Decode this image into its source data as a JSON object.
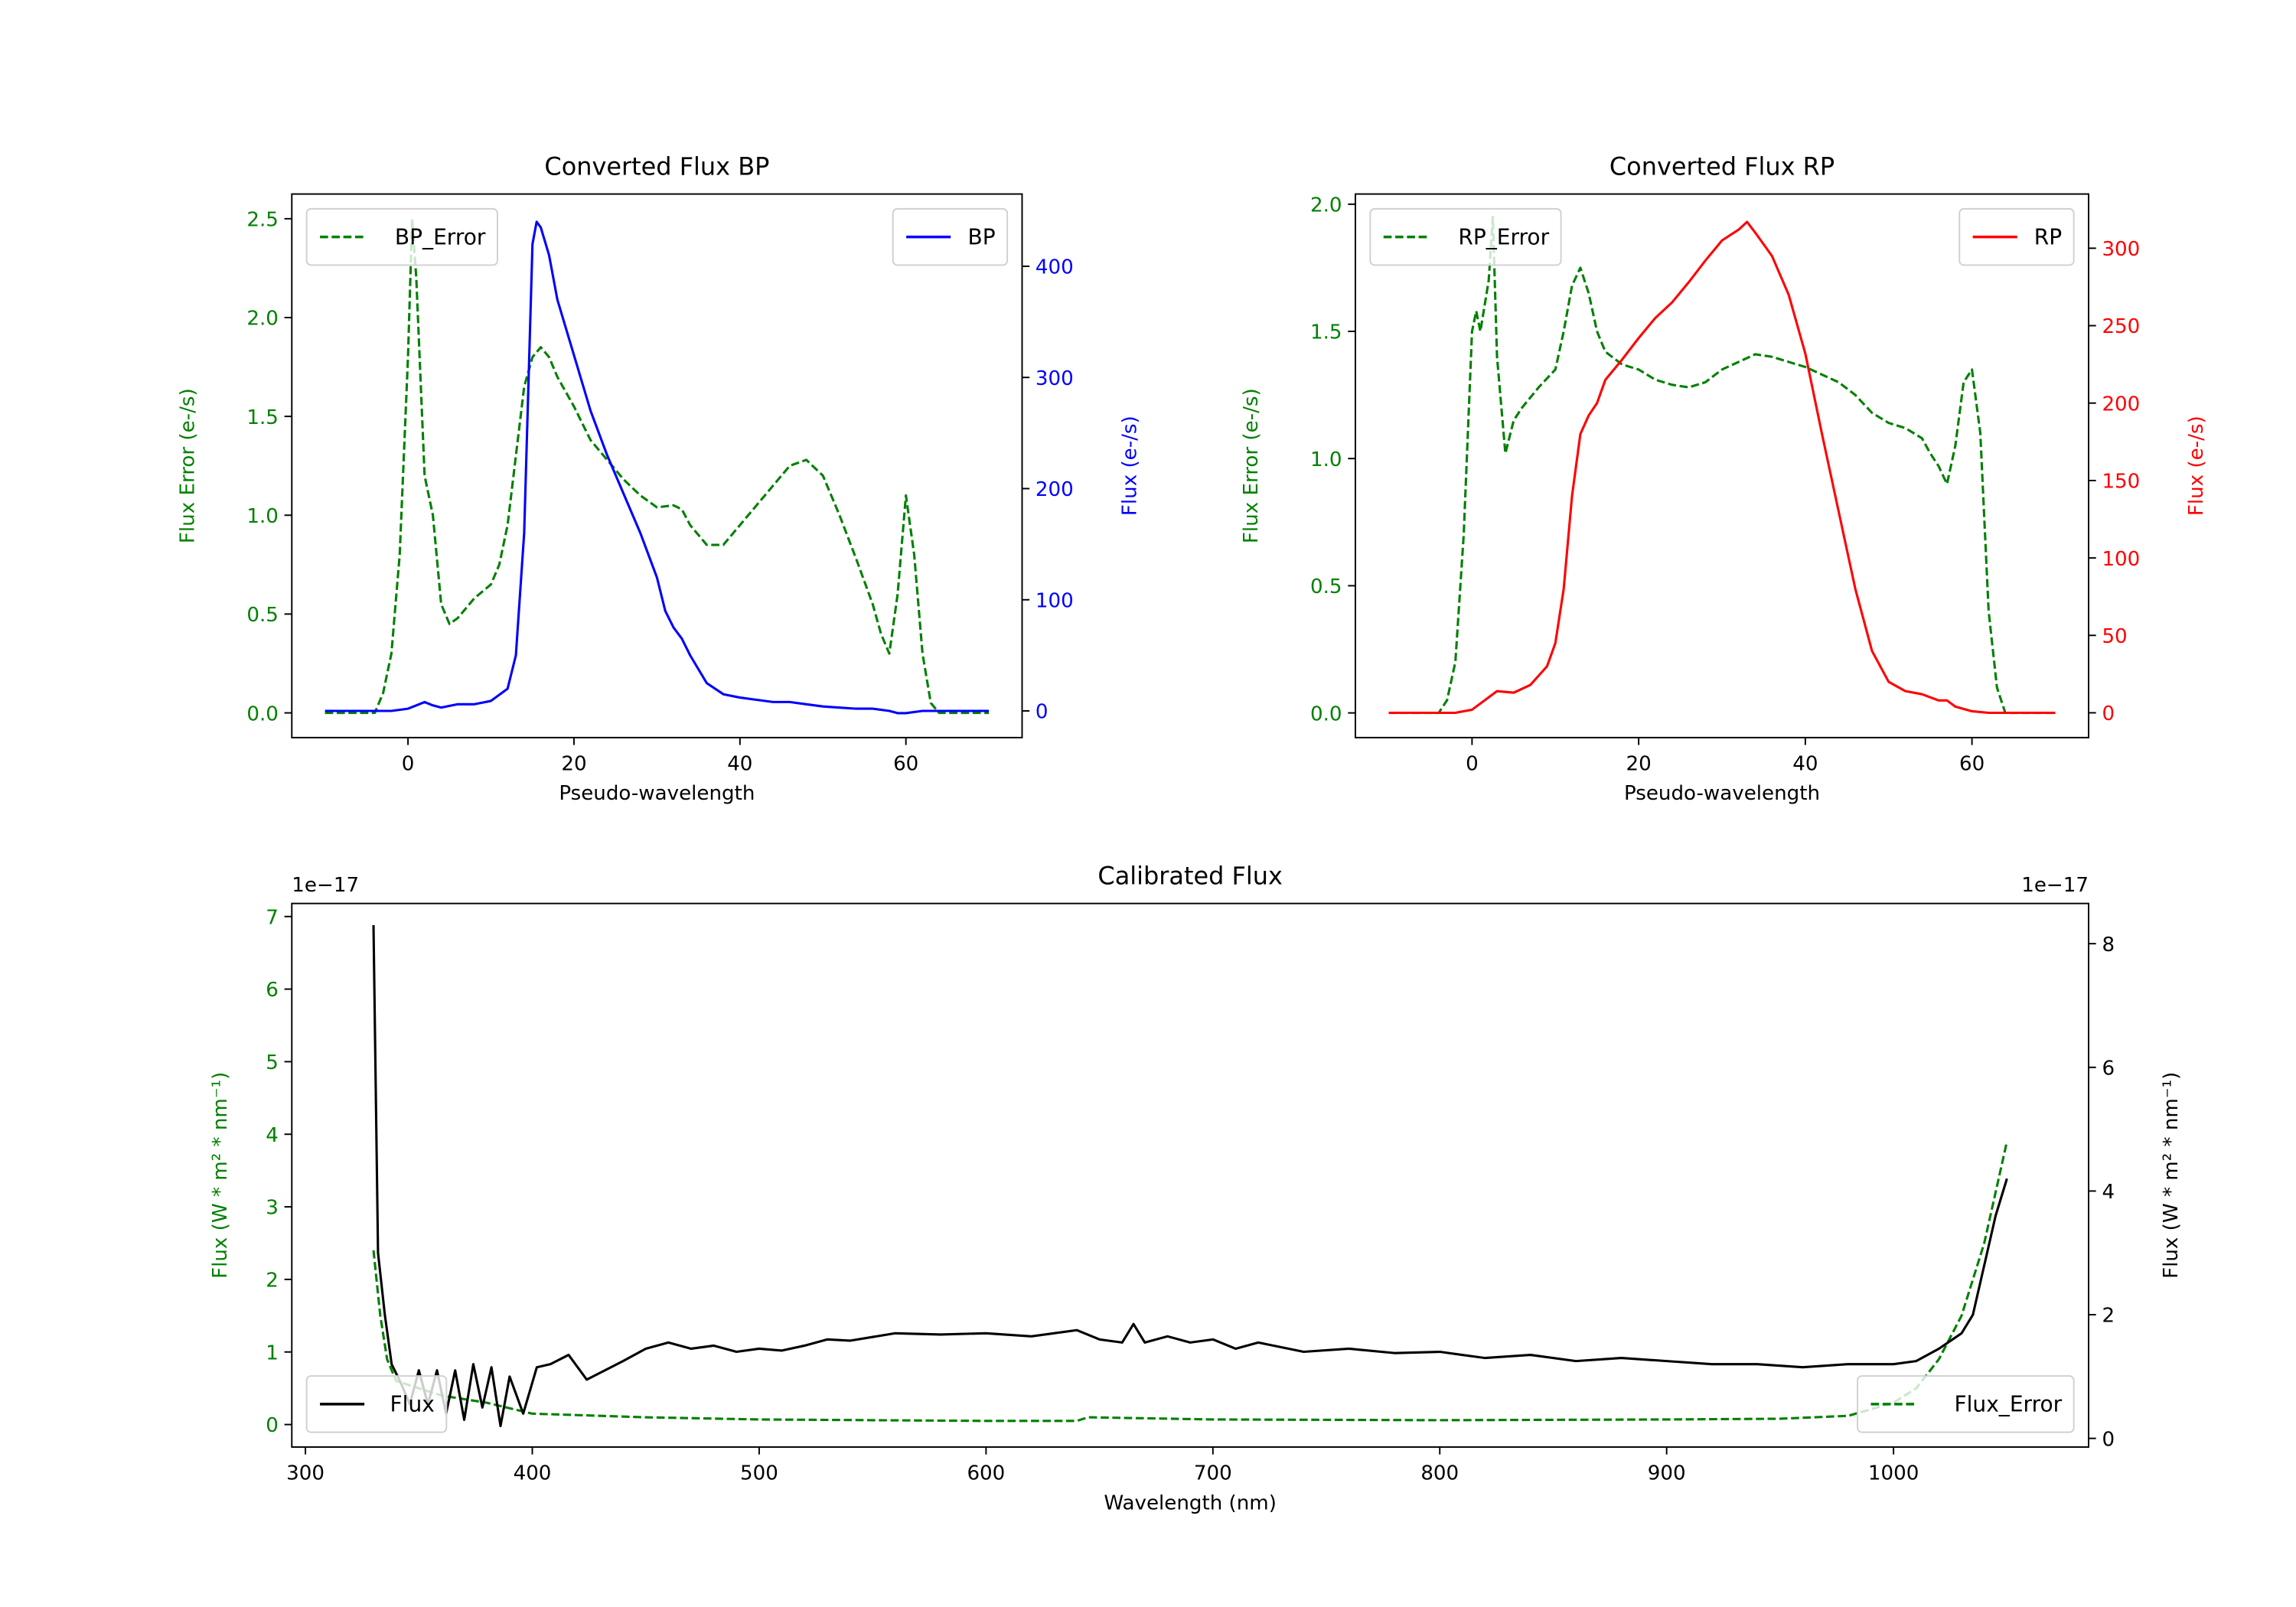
{
  "chart_data": [
    {
      "type": "line",
      "title": "Converted Flux BP",
      "xlabel": "Pseudo-wavelength",
      "ylabel": "Flux Error (e-/s)",
      "ylabel_right": "Flux (e-/s)",
      "xlim": [
        -14,
        74
      ],
      "ylim": [
        -0.125,
        2.625
      ],
      "ylim_right": [
        -24,
        465
      ],
      "xticks": [
        0,
        20,
        40,
        60
      ],
      "yticks": [
        0.0,
        0.5,
        1.0,
        1.5,
        2.0,
        2.5
      ],
      "yticks_right": [
        0,
        100,
        200,
        300,
        400
      ],
      "left_color": "#008000",
      "right_color": "#0000ff",
      "series": [
        {
          "name": "BP_Error",
          "axis": "left",
          "color": "#008000",
          "style": "dashed",
          "legend": "top-left",
          "x": [
            -10,
            -4,
            -3,
            -2,
            -1,
            0,
            0.5,
            1,
            2,
            3,
            4,
            5,
            6,
            8,
            10,
            11,
            12,
            13,
            14,
            15,
            16,
            17,
            18,
            20,
            22,
            24,
            26,
            28,
            30,
            32,
            33,
            34,
            36,
            38,
            40,
            42,
            44,
            46,
            48,
            50,
            52,
            54,
            56,
            57,
            58,
            59,
            60,
            61,
            62,
            63,
            64,
            70
          ],
          "y": [
            0,
            0,
            0.1,
            0.3,
            0.8,
            1.8,
            2.5,
            2.2,
            1.2,
            1.0,
            0.55,
            0.45,
            0.48,
            0.58,
            0.65,
            0.75,
            0.95,
            1.3,
            1.65,
            1.8,
            1.85,
            1.8,
            1.7,
            1.55,
            1.38,
            1.28,
            1.18,
            1.1,
            1.04,
            1.05,
            1.03,
            0.95,
            0.85,
            0.85,
            0.95,
            1.05,
            1.15,
            1.25,
            1.28,
            1.2,
            1.0,
            0.78,
            0.55,
            0.4,
            0.3,
            0.6,
            1.1,
            0.8,
            0.3,
            0.05,
            0,
            0
          ]
        },
        {
          "name": "BP",
          "axis": "right",
          "color": "#0000ff",
          "style": "solid",
          "legend": "top-right",
          "x": [
            -10,
            -2,
            0,
            1,
            2,
            3,
            4,
            6,
            8,
            10,
            12,
            13,
            14,
            15,
            15.5,
            16,
            17,
            18,
            20,
            22,
            24,
            26,
            28,
            30,
            31,
            32,
            33,
            34,
            36,
            38,
            40,
            42,
            44,
            46,
            48,
            50,
            52,
            54,
            56,
            58,
            59,
            60,
            62,
            70
          ],
          "y": [
            0,
            0,
            2,
            5,
            8,
            5,
            3,
            6,
            6,
            9,
            20,
            50,
            160,
            420,
            440,
            435,
            410,
            370,
            320,
            270,
            230,
            195,
            160,
            120,
            90,
            75,
            65,
            50,
            25,
            15,
            12,
            10,
            8,
            8,
            6,
            4,
            3,
            2,
            2,
            0,
            -2,
            -2,
            0,
            0
          ]
        }
      ]
    },
    {
      "type": "line",
      "title": "Converted Flux RP",
      "xlabel": "Pseudo-wavelength",
      "ylabel": "Flux Error (e-/s)",
      "ylabel_right": "Flux (e-/s)",
      "xlim": [
        -14,
        74
      ],
      "ylim": [
        -0.097,
        2.04
      ],
      "ylim_right": [
        -16,
        335
      ],
      "xticks": [
        0,
        20,
        40,
        60
      ],
      "yticks": [
        0.0,
        0.5,
        1.0,
        1.5,
        2.0
      ],
      "yticks_right": [
        0,
        50,
        100,
        150,
        200,
        250,
        300
      ],
      "left_color": "#008000",
      "right_color": "#ff0000",
      "series": [
        {
          "name": "RP_Error",
          "axis": "left",
          "color": "#008000",
          "style": "dashed",
          "legend": "top-left",
          "x": [
            -10,
            -4,
            -3,
            -2,
            -1,
            0,
            0.5,
            1,
            2,
            2.5,
            3,
            4,
            5,
            6,
            8,
            10,
            11,
            12,
            13,
            14,
            15,
            16,
            18,
            20,
            22,
            24,
            26,
            28,
            30,
            32,
            34,
            36,
            38,
            40,
            42,
            44,
            46,
            48,
            50,
            52,
            54,
            55,
            56,
            57,
            58,
            59,
            60,
            61,
            62,
            63,
            64,
            70
          ],
          "y": [
            0,
            0,
            0.05,
            0.2,
            0.7,
            1.5,
            1.58,
            1.5,
            1.7,
            1.95,
            1.4,
            1.02,
            1.15,
            1.2,
            1.28,
            1.35,
            1.5,
            1.68,
            1.75,
            1.65,
            1.5,
            1.42,
            1.37,
            1.35,
            1.31,
            1.29,
            1.28,
            1.3,
            1.35,
            1.38,
            1.41,
            1.4,
            1.38,
            1.36,
            1.33,
            1.3,
            1.25,
            1.18,
            1.14,
            1.12,
            1.08,
            1.02,
            0.97,
            0.9,
            1.05,
            1.3,
            1.35,
            1.1,
            0.4,
            0.1,
            0,
            0
          ]
        },
        {
          "name": "RP",
          "axis": "right",
          "color": "#ff0000",
          "style": "solid",
          "legend": "top-right",
          "x": [
            -10,
            -2,
            0,
            2,
            3,
            5,
            7,
            9,
            10,
            11,
            12,
            13,
            14,
            15,
            16,
            18,
            20,
            22,
            24,
            26,
            28,
            30,
            32,
            33,
            34,
            36,
            38,
            40,
            42,
            44,
            46,
            48,
            50,
            52,
            54,
            56,
            57,
            58,
            60,
            62,
            70
          ],
          "y": [
            0,
            0,
            2,
            10,
            14,
            13,
            18,
            30,
            45,
            80,
            140,
            180,
            192,
            200,
            215,
            228,
            242,
            255,
            265,
            278,
            292,
            305,
            312,
            317,
            310,
            295,
            270,
            232,
            180,
            130,
            80,
            40,
            20,
            14,
            12,
            8,
            8,
            4,
            1,
            0,
            0
          ]
        }
      ]
    },
    {
      "type": "line",
      "title": "Calibrated Flux",
      "xlabel": "Wavelength (nm)",
      "ylabel": "Flux (W * m² * nm⁻¹)",
      "ylabel_right": "Flux (W * m² * nm⁻¹)",
      "offset_left": "1e−17",
      "offset_right": "1e−17",
      "xlim": [
        294,
        1086
      ],
      "ylim": [
        -0.31,
        7.18
      ],
      "ylim_right": [
        -0.14,
        8.65
      ],
      "xticks": [
        300,
        400,
        500,
        600,
        700,
        800,
        900,
        1000
      ],
      "yticks": [
        0,
        1,
        2,
        3,
        4,
        5,
        6,
        7
      ],
      "yticks_right": [
        0,
        2,
        4,
        6,
        8
      ],
      "left_color": "#008000",
      "right_color": "#000000",
      "series": [
        {
          "name": "Flux_Error",
          "axis": "left",
          "color": "#008000",
          "style": "dashed",
          "legend": "bottom-right",
          "x": [
            330,
            333,
            336,
            340,
            350,
            360,
            380,
            400,
            450,
            500,
            600,
            640,
            645,
            700,
            800,
            900,
            950,
            980,
            1000,
            1010,
            1020,
            1030,
            1040,
            1050
          ],
          "y": [
            2.4,
            1.5,
            0.9,
            0.6,
            0.5,
            0.4,
            0.3,
            0.15,
            0.1,
            0.07,
            0.05,
            0.05,
            0.1,
            0.07,
            0.06,
            0.07,
            0.08,
            0.12,
            0.3,
            0.5,
            0.9,
            1.5,
            2.5,
            3.9
          ]
        },
        {
          "name": "Flux",
          "axis": "right",
          "color": "#000000",
          "style": "solid",
          "legend": "bottom-left",
          "x": [
            330,
            332,
            335,
            338,
            342,
            346,
            350,
            354,
            358,
            362,
            366,
            370,
            374,
            378,
            382,
            386,
            390,
            396,
            402,
            408,
            416,
            424,
            432,
            440,
            450,
            460,
            470,
            480,
            490,
            500,
            510,
            520,
            530,
            540,
            560,
            580,
            600,
            620,
            640,
            650,
            660,
            665,
            670,
            680,
            690,
            700,
            710,
            720,
            740,
            760,
            780,
            800,
            820,
            840,
            860,
            880,
            900,
            920,
            940,
            960,
            980,
            1000,
            1010,
            1020,
            1030,
            1035,
            1040,
            1045,
            1050
          ],
          "y": [
            8.3,
            3,
            2.0,
            1.2,
            0.9,
            0.55,
            1.1,
            0.55,
            1.1,
            0.4,
            1.1,
            0.3,
            1.2,
            0.5,
            1.15,
            0.2,
            1.0,
            0.4,
            1.15,
            1.2,
            1.35,
            0.95,
            1.1,
            1.25,
            1.45,
            1.55,
            1.45,
            1.5,
            1.4,
            1.45,
            1.42,
            1.5,
            1.6,
            1.58,
            1.7,
            1.68,
            1.7,
            1.65,
            1.75,
            1.6,
            1.55,
            1.85,
            1.55,
            1.65,
            1.55,
            1.6,
            1.45,
            1.55,
            1.4,
            1.45,
            1.38,
            1.4,
            1.3,
            1.35,
            1.25,
            1.3,
            1.25,
            1.2,
            1.2,
            1.15,
            1.2,
            1.2,
            1.25,
            1.45,
            1.7,
            2.0,
            2.8,
            3.6,
            4.2
          ]
        }
      ]
    }
  ]
}
